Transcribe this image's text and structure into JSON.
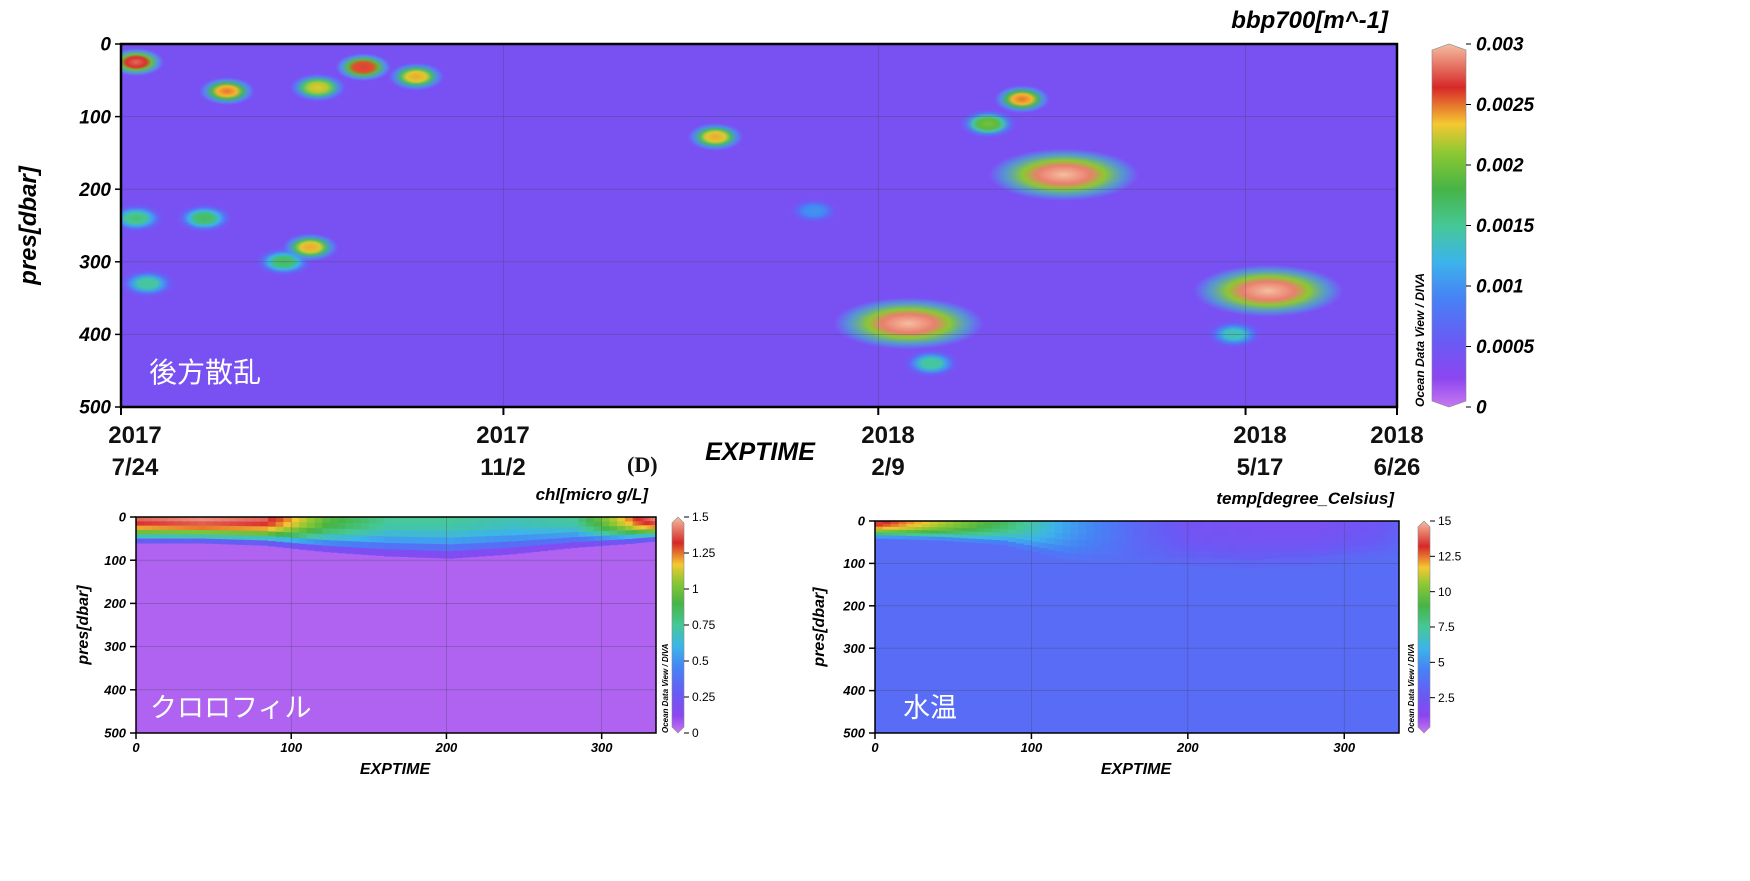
{
  "panel_label": "(D)",
  "chart_data": [
    {
      "type": "heatmap",
      "id": "bbp",
      "title": "bbp700[m^-1]",
      "xlabel": "EXPTIME",
      "ylabel": "pres[dbar]",
      "overlay_label": "後方散乱",
      "watermark": "Ocean Data View / DIVA",
      "ylim": [
        0,
        500
      ],
      "y_ticks": [
        "0",
        "100",
        "200",
        "300",
        "400",
        "500"
      ],
      "xlim": [
        "2017-07-24",
        "2018-06-26"
      ],
      "x_ticks": [
        {
          "date": "2017-07-24",
          "year": "2017",
          "md": "7/24"
        },
        {
          "date": "2017-11-02",
          "year": "2017",
          "md": "11/2"
        },
        {
          "date": "2018-02-09",
          "year": "2018",
          "md": "2/9"
        },
        {
          "date": "2018-05-17",
          "year": "2018",
          "md": "5/17"
        },
        {
          "date": "2018-06-26",
          "year": "2018",
          "md": "6/26"
        }
      ],
      "colorbar": {
        "min": 0,
        "max": 0.003,
        "ticks": [
          "0.003",
          "0.0025",
          "0.002",
          "0.0015",
          "0.001",
          "0.0005",
          "0"
        ]
      },
      "field": {
        "background": 0.0004,
        "features": [
          {
            "x": "2017-07-28",
            "y": 25,
            "v": 0.0028
          },
          {
            "x": "2017-08-21",
            "y": 65,
            "v": 0.0025
          },
          {
            "x": "2017-09-14",
            "y": 60,
            "v": 0.0023
          },
          {
            "x": "2017-09-26",
            "y": 32,
            "v": 0.0027
          },
          {
            "x": "2017-10-10",
            "y": 45,
            "v": 0.0024
          },
          {
            "x": "2017-07-28",
            "y": 240,
            "v": 0.0016
          },
          {
            "x": "2017-08-15",
            "y": 240,
            "v": 0.0017
          },
          {
            "x": "2017-09-05",
            "y": 300,
            "v": 0.0017
          },
          {
            "x": "2017-09-12",
            "y": 280,
            "v": 0.0024
          },
          {
            "x": "2017-07-31",
            "y": 330,
            "v": 0.0015
          },
          {
            "x": "2017-12-28",
            "y": 128,
            "v": 0.0024
          },
          {
            "x": "2018-01-23",
            "y": 230,
            "v": 0.001
          },
          {
            "x": "2018-02-17",
            "y": 385,
            "v": 0.003
          },
          {
            "x": "2018-03-19",
            "y": 76,
            "v": 0.0025
          },
          {
            "x": "2018-03-10",
            "y": 110,
            "v": 0.002
          },
          {
            "x": "2018-03-30",
            "y": 180,
            "v": 0.003
          },
          {
            "x": "2018-05-23",
            "y": 340,
            "v": 0.003
          },
          {
            "x": "2018-05-14",
            "y": 400,
            "v": 0.0014
          },
          {
            "x": "2018-02-23",
            "y": 440,
            "v": 0.0015
          }
        ]
      }
    },
    {
      "type": "heatmap",
      "id": "chl",
      "title": "chl[micro g/L]",
      "xlabel": "EXPTIME",
      "ylabel": "pres[dbar]",
      "overlay_label": "クロロフィル",
      "watermark": "Ocean Data View / DIVA",
      "ylim": [
        0,
        500
      ],
      "y_ticks": [
        "0",
        "100",
        "200",
        "300",
        "400",
        "500"
      ],
      "xlim": [
        0,
        335
      ],
      "x_ticks": [
        "0",
        "100",
        "200",
        "300"
      ],
      "colorbar": {
        "min": 0,
        "max": 1.5,
        "ticks": [
          "1.5",
          "1.25",
          "1",
          "0.75",
          "0.5",
          "0.25",
          "0"
        ]
      },
      "profile": {
        "x": [
          0,
          40,
          80,
          120,
          160,
          200,
          240,
          280,
          320,
          335
        ],
        "surface_value": [
          1.4,
          1.45,
          1.4,
          0.95,
          0.75,
          0.75,
          0.7,
          0.75,
          1.3,
          1.45
        ],
        "mixed_depth": [
          60,
          60,
          65,
          80,
          90,
          95,
          85,
          70,
          60,
          55
        ],
        "deep_value": 0.05
      }
    },
    {
      "type": "heatmap",
      "id": "temp",
      "title": "temp[degree_Celsius]",
      "xlabel": "EXPTIME",
      "ylabel": "pres[dbar]",
      "overlay_label": "水温",
      "watermark": "Ocean Data View / DIVA",
      "ylim": [
        0,
        500
      ],
      "y_ticks": [
        "0",
        "100",
        "200",
        "300",
        "400",
        "500"
      ],
      "xlim": [
        0,
        335
      ],
      "x_ticks": [
        "0",
        "100",
        "200",
        "300"
      ],
      "colorbar": {
        "min": 0,
        "max": 15,
        "ticks": [
          "15",
          "12.5",
          "10",
          "7.5",
          "5",
          "2.5"
        ]
      },
      "profile": {
        "x": [
          0,
          40,
          80,
          120,
          160,
          200,
          240,
          280,
          320,
          335
        ],
        "surface_value": [
          13.5,
          11,
          8.5,
          5.5,
          3.5,
          2.2,
          2.0,
          2.0,
          2.5,
          3.0
        ],
        "mixed_depth": [
          40,
          45,
          55,
          90,
          100,
          105,
          110,
          100,
          85,
          80
        ],
        "deep_value": 3.5
      }
    }
  ]
}
